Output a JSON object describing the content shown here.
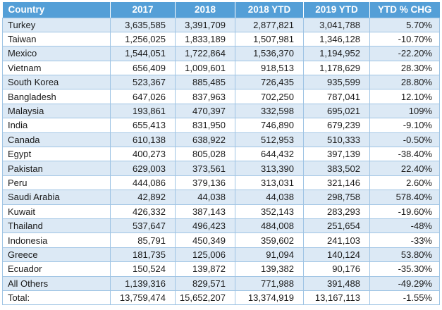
{
  "colors": {
    "header_bg": "#549FD7",
    "header_text": "#FFFFFF",
    "band_bg": "#DCE9F5",
    "row_bg": "#FFFFFF",
    "border": "#9FC4E4",
    "body_text": "#1A1A1A"
  },
  "chart_data": {
    "type": "table",
    "columns": [
      "Country",
      "2017",
      "2018",
      "2018 YTD",
      "2019 YTD",
      "YTD % CHG"
    ],
    "column_keys": [
      "country",
      "y2017",
      "y2018",
      "ytd2018",
      "ytd2019",
      "ytd-pct-chg"
    ],
    "banding": "odd rows shaded light blue, header solid blue with white dotted separators",
    "rows": [
      {
        "label": "Turkey",
        "values": [
          "3,635,585",
          "3,391,709",
          "2,877,821",
          "3,041,788",
          "5.70%"
        ]
      },
      {
        "label": "Taiwan",
        "values": [
          "1,256,025",
          "1,833,189",
          "1,507,981",
          "1,346,128",
          "-10.70%"
        ]
      },
      {
        "label": "Mexico",
        "values": [
          "1,544,051",
          "1,722,864",
          "1,536,370",
          "1,194,952",
          "-22.20%"
        ]
      },
      {
        "label": "Vietnam",
        "values": [
          "656,409",
          "1,009,601",
          "918,513",
          "1,178,629",
          "28.30%"
        ]
      },
      {
        "label": "South Korea",
        "values": [
          "523,367",
          "885,485",
          "726,435",
          "935,599",
          "28.80%"
        ]
      },
      {
        "label": "Bangladesh",
        "values": [
          "647,026",
          "837,963",
          "702,250",
          "787,041",
          "12.10%"
        ]
      },
      {
        "label": "Malaysia",
        "values": [
          "193,861",
          "470,397",
          "332,598",
          "695,021",
          "109%"
        ]
      },
      {
        "label": "India",
        "values": [
          "655,413",
          "831,950",
          "746,890",
          "679,239",
          "-9.10%"
        ]
      },
      {
        "label": "Canada",
        "values": [
          "610,138",
          "638,922",
          "512,953",
          "510,333",
          "-0.50%"
        ]
      },
      {
        "label": "Egypt",
        "values": [
          "400,273",
          "805,028",
          "644,432",
          "397,139",
          "-38.40%"
        ]
      },
      {
        "label": "Pakistan",
        "values": [
          "629,003",
          "373,561",
          "313,390",
          "383,502",
          "22.40%"
        ]
      },
      {
        "label": "Peru",
        "values": [
          "444,086",
          "379,136",
          "313,031",
          "321,146",
          "2.60%"
        ]
      },
      {
        "label": "Saudi Arabia",
        "values": [
          "42,892",
          "44,038",
          "44,038",
          "298,758",
          "578.40%"
        ]
      },
      {
        "label": "Kuwait",
        "values": [
          "426,332",
          "387,143",
          "352,143",
          "283,293",
          "-19.60%"
        ]
      },
      {
        "label": "Thailand",
        "values": [
          "537,647",
          "496,423",
          "484,008",
          "251,654",
          "-48%"
        ]
      },
      {
        "label": "Indonesia",
        "values": [
          "85,791",
          "450,349",
          "359,602",
          "241,103",
          "-33%"
        ]
      },
      {
        "label": "Greece",
        "values": [
          "181,735",
          "125,006",
          "91,094",
          "140,124",
          "53.80%"
        ]
      },
      {
        "label": "Ecuador",
        "values": [
          "150,524",
          "139,872",
          "139,382",
          "90,176",
          "-35.30%"
        ]
      },
      {
        "label": "All Others",
        "values": [
          "1,139,316",
          "829,571",
          "771,988",
          "391,488",
          "-49.29%"
        ]
      },
      {
        "label": "Total:",
        "values": [
          "13,759,474",
          "15,652,207",
          "13,374,919",
          "13,167,113",
          "-1.55%"
        ]
      }
    ]
  }
}
